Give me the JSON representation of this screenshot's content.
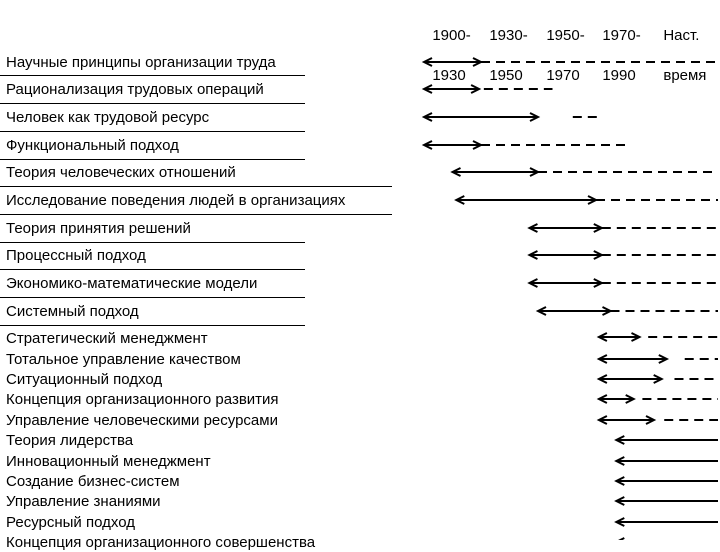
{
  "periods": [
    {
      "line1": "1900-",
      "line2": "1930"
    },
    {
      "line1": "1930-",
      "line2": "1950"
    },
    {
      "line1": "1950-",
      "line2": "1970"
    },
    {
      "line1": "1970-",
      "line2": "1990"
    },
    {
      "line1": "Наст.",
      "line2": "время"
    }
  ],
  "approaches": [
    {
      "label": "Научные принципы организации труда",
      "solid": [
        1900,
        1930
      ],
      "dashed": [
        1930,
        2015
      ]
    },
    {
      "label": "Рационализация трудовых операций",
      "solid": [
        1900,
        1929
      ],
      "dashed": [
        1931,
        1955
      ]
    },
    {
      "label": "Человек как трудовой ресурс",
      "solid": [
        1900,
        1950
      ],
      "dashed": [
        1962,
        1972
      ]
    },
    {
      "label": "Функциональный подход",
      "solid": [
        1900,
        1930
      ],
      "dashed": [
        1930,
        1980
      ]
    },
    {
      "label": "Теория человеческих отношений",
      "solid": [
        1915,
        1950
      ],
      "dashed": [
        1950,
        2015
      ]
    },
    {
      "label": "Исследование поведения людей в организациях",
      "solid": [
        1917,
        1970
      ],
      "dashed": [
        1970,
        2015
      ]
    },
    {
      "label": "Теория принятия решений",
      "solid": [
        1947,
        1972
      ],
      "dashed": [
        1972,
        2015
      ]
    },
    {
      "label": "Процессный подход",
      "solid": [
        1947,
        1972
      ],
      "dashed": [
        1972,
        2015
      ]
    },
    {
      "label": "Экономико-математические модели",
      "solid": [
        1947,
        1972
      ],
      "dashed": [
        1972,
        2015
      ]
    },
    {
      "label": "Системный подход",
      "solid": [
        1950,
        1975
      ],
      "dashed": [
        1975,
        2015
      ]
    },
    {
      "label": "Стратегический менеджмент",
      "solid": [
        1971,
        1985
      ],
      "dashed": [
        1988,
        2015
      ]
    },
    {
      "label": "Тотальное управление качеством",
      "solid": [
        1971,
        1995
      ],
      "dashed": [
        2002,
        2015
      ]
    },
    {
      "label": "Ситуационный подход",
      "solid": [
        1971,
        1993
      ],
      "dashed": [
        1998,
        2015
      ]
    },
    {
      "label": "Концепция организационного развития",
      "solid": [
        1971,
        1983
      ],
      "dashed": [
        1986,
        2015
      ]
    },
    {
      "label": "Управление человеческими ресурсами",
      "solid": [
        1971,
        1990
      ],
      "dashed": [
        1994,
        2015
      ]
    },
    {
      "label": "Теория лидерства",
      "solid": [
        1977,
        2015
      ],
      "dashed": null
    },
    {
      "label": "Инновационный менеджмент",
      "solid": [
        1977,
        2015
      ],
      "dashed": null
    },
    {
      "label": "Создание бизнес-систем",
      "solid": [
        1977,
        2015
      ],
      "dashed": null
    },
    {
      "label": "Управление знаниями",
      "solid": [
        1977,
        2015
      ],
      "dashed": null
    },
    {
      "label": "Ресурсный подход",
      "solid": [
        1977,
        2015
      ],
      "dashed": null
    },
    {
      "label": "Концепция организационного совершенства",
      "solid": [
        1977,
        2015
      ],
      "dashed": null
    }
  ]
}
